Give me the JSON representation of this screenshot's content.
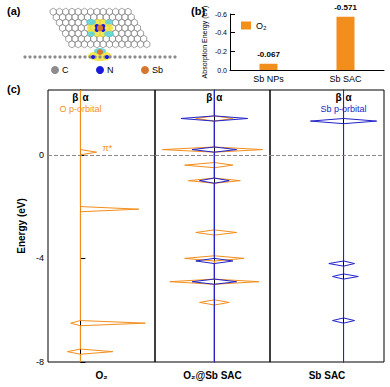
{
  "chart_data": [
    {
      "type": "structure",
      "title": "(a)",
      "series": [
        {
          "name": "C",
          "color": "#8c8c8c"
        },
        {
          "name": "N",
          "color": "#1a1adb"
        },
        {
          "name": "Sb",
          "color": "#d9762b"
        }
      ]
    },
    {
      "type": "bar",
      "title": "(b)",
      "categories": [
        "Sb NPs",
        "Sb SAC"
      ],
      "series": [
        {
          "name": "O₂",
          "color": "#f28e1c",
          "values": [
            -0.067,
            -0.571
          ]
        }
      ],
      "ylabel": "Absorption Energy (eV)",
      "ylim": [
        0,
        -0.6
      ],
      "yticks": [
        -0.6,
        -0.4,
        -0.2,
        {
          "value": 0,
          "label": "0.0"
        }
      ],
      "data_labels": true,
      "legend": "upper left",
      "grid": false
    },
    {
      "type": "line",
      "title": "(c)",
      "xlabel": "O₂",
      "ylabel": "Energy (eV)",
      "xlim": [
        -1,
        2.3
      ],
      "ylim": [
        -8,
        2.5
      ],
      "yticks": [
        -8,
        -4,
        0
      ],
      "tick_labels": "y",
      "reference_line": 0,
      "annotations": [
        {
          "text": "O p-orbital",
          "color": "#f28e1c"
        },
        {
          "text": "π*",
          "color": "#f28e1c"
        }
      ],
      "series": [
        {
          "name": "α",
          "color": "#f28e1c",
          "y": [
            2.5,
            0.2,
            0.1,
            0.0,
            -2.0,
            -2.1,
            -2.2,
            -6.4,
            -6.5,
            -6.6,
            -7.5,
            -7.6,
            -7.7,
            -8
          ],
          "values": [
            0,
            0,
            0.5,
            0,
            0,
            1.8,
            0,
            0,
            2.0,
            0,
            0,
            1.0,
            0,
            0
          ]
        },
        {
          "name": "β",
          "color": "#f28e1c",
          "y": [
            2.5,
            -6.4,
            -6.5,
            -6.6,
            -7.5,
            -7.6,
            -7.7,
            -8
          ],
          "values": [
            0,
            0,
            -0.3,
            0,
            0,
            -0.4,
            0,
            0
          ]
        }
      ]
    },
    {
      "type": "line",
      "xlabel": "O₂@Sb SAC",
      "xlim": [
        -1.6,
        1.5
      ],
      "ylim": [
        -8,
        2.5
      ],
      "tick_labels": false,
      "reference_line": 0,
      "series": [
        {
          "name": "α",
          "color": "#f28e1c",
          "y": [
            2.5,
            1.5,
            1.4,
            1.3,
            0.3,
            0.2,
            0.1,
            -0.3,
            -0.4,
            -0.5,
            -0.9,
            -1.0,
            -1.1,
            -2.9,
            -3.0,
            -3.1,
            -3.9,
            -4.0,
            -4.1,
            -4.8,
            -4.9,
            -5.0,
            -5.6,
            -5.7,
            -5.8,
            -8
          ],
          "values": [
            0,
            0,
            0.5,
            0,
            0,
            1.3,
            0,
            0,
            0.5,
            0,
            0,
            0.7,
            0,
            0,
            0.6,
            0,
            0,
            0.8,
            0,
            0,
            1.2,
            0,
            0,
            0.4,
            0,
            0
          ]
        },
        {
          "name": "β",
          "color": "#f28e1c",
          "y": [
            2.5,
            1.5,
            1.4,
            1.3,
            0.3,
            0.2,
            0.1,
            -0.3,
            -0.4,
            -0.5,
            -0.9,
            -1.0,
            -1.1,
            -2.9,
            -3.0,
            -3.1,
            -3.9,
            -4.0,
            -4.1,
            -4.8,
            -4.9,
            -5.0,
            -5.6,
            -5.7,
            -5.8,
            -8
          ],
          "values": [
            0,
            0,
            -0.5,
            0,
            0,
            -1.4,
            0,
            0,
            -0.8,
            0,
            0,
            -0.7,
            0,
            0,
            -0.5,
            0,
            0,
            -0.8,
            0,
            0,
            -1.2,
            0,
            0,
            -0.4,
            0,
            0
          ]
        },
        {
          "name": "α",
          "color": "#2323c8",
          "y": [
            2.5,
            1.5,
            1.4,
            1.3,
            0.3,
            0.2,
            0.1,
            -0.9,
            -1.0,
            -1.1,
            -4.0,
            -4.1,
            -4.2,
            -4.8,
            -4.9,
            -5.0,
            -8
          ],
          "values": [
            0,
            0,
            0.9,
            0,
            0,
            0.6,
            0,
            0,
            0.4,
            0,
            0,
            0.5,
            0,
            0,
            0.6,
            0,
            0
          ]
        },
        {
          "name": "β",
          "color": "#2323c8",
          "y": [
            2.5,
            1.5,
            1.4,
            1.3,
            0.3,
            0.2,
            0.1,
            -0.9,
            -1.0,
            -1.1,
            -4.0,
            -4.1,
            -4.2,
            -4.8,
            -4.9,
            -5.0,
            -8
          ],
          "values": [
            0,
            0,
            -0.9,
            0,
            0,
            -0.6,
            0,
            0,
            -0.4,
            0,
            0,
            -0.5,
            0,
            0,
            -0.6,
            0,
            0
          ]
        }
      ]
    },
    {
      "type": "line",
      "xlabel": "Sb SAC",
      "xlim": [
        -2,
        1.1
      ],
      "ylim": [
        -8,
        2.5
      ],
      "tick_labels": false,
      "reference_line": 0,
      "annotations": [
        {
          "text": "Sb p-orbital",
          "color": "#2323c8"
        }
      ],
      "series": [
        {
          "name": "α",
          "color": "#2323c8",
          "y": [
            2.5,
            1.4,
            1.3,
            1.2,
            -4.1,
            -4.2,
            -4.3,
            -4.6,
            -4.7,
            -4.8,
            -6.3,
            -6.4,
            -6.5,
            -8
          ],
          "values": [
            0,
            0,
            0.9,
            0,
            0,
            0.3,
            0,
            0,
            0.4,
            0,
            0,
            0.3,
            0,
            0
          ]
        },
        {
          "name": "β",
          "color": "#2323c8",
          "y": [
            2.5,
            1.4,
            1.3,
            1.2,
            -4.1,
            -4.2,
            -4.3,
            -4.6,
            -4.7,
            -4.8,
            -6.3,
            -6.4,
            -6.5,
            -8
          ],
          "values": [
            0,
            0,
            -0.9,
            0,
            0,
            -0.4,
            0,
            0,
            -0.3,
            0,
            0,
            -0.3,
            0,
            0
          ]
        }
      ]
    }
  ]
}
